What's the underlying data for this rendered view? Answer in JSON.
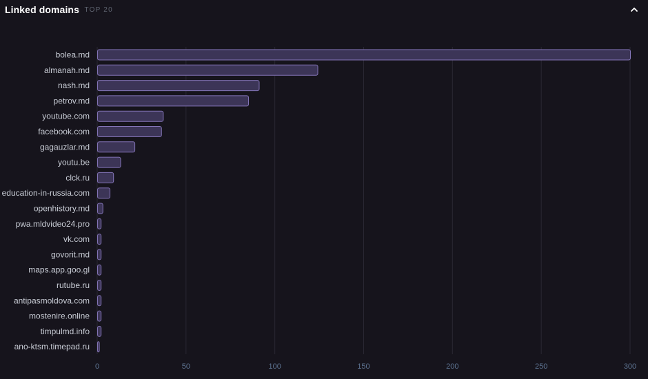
{
  "header": {
    "title": "Linked domains",
    "subtitle_sep": "·",
    "subtitle": "TOP 20",
    "collapse_icon": "chevron-up-icon"
  },
  "colors": {
    "bar_fill": "#3c3557",
    "bar_stroke": "#8475b8",
    "grid": "#2a2833",
    "background": "#16141c"
  },
  "chart_data": {
    "type": "bar",
    "orientation": "horizontal",
    "title": "Linked domains",
    "subtitle": "TOP 20",
    "categories": [
      "bolea.md",
      "almanah.md",
      "nash.md",
      "petrov.md",
      "youtube.com",
      "facebook.com",
      "gagauzlar.md",
      "youtu.be",
      "clck.ru",
      "education-in-russia.com",
      "openhistory.md",
      "pwa.mldvideo24.pro",
      "vk.com",
      "govorit.md",
      "maps.app.goo.gl",
      "rutube.ru",
      "antipasmoldova.com",
      "mostenire.online",
      "timpulmd.info",
      "ano-ktsm.timepad.ru"
    ],
    "values": [
      300,
      124,
      91,
      85,
      37,
      36,
      21,
      13,
      9,
      7,
      3,
      2,
      2,
      2,
      2,
      2,
      2,
      2,
      2,
      1
    ],
    "xlim": [
      0,
      300
    ],
    "xticks": [
      0,
      50,
      100,
      150,
      200,
      250,
      300
    ],
    "xlabel": "",
    "ylabel": "",
    "grid": true
  }
}
